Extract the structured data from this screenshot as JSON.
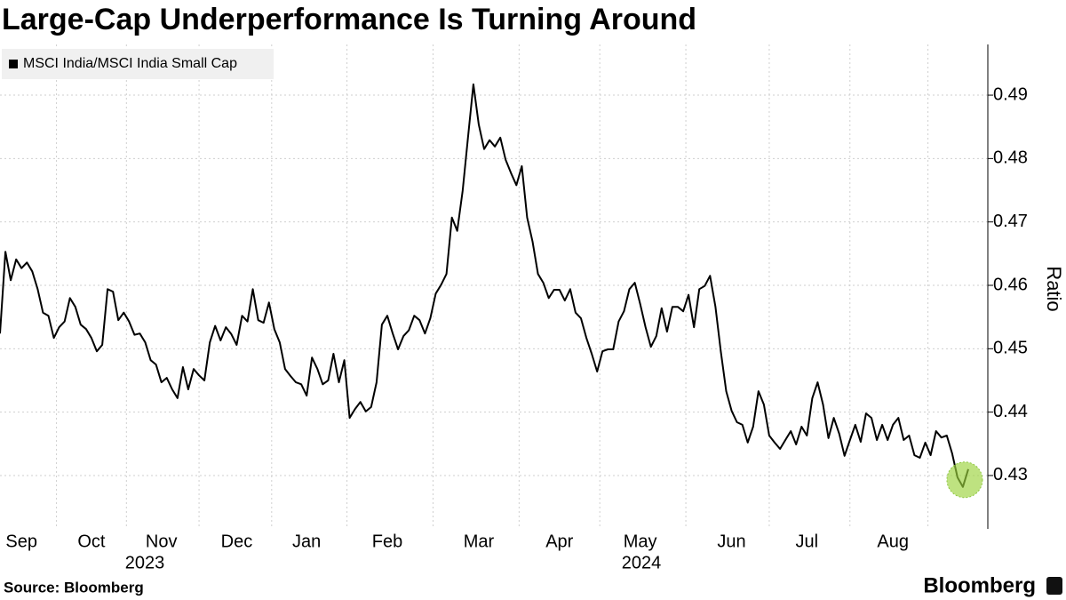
{
  "chart_data": {
    "type": "line",
    "title": "Large-Cap Underperformance Is Turning Around",
    "y_label": "Ratio",
    "source": "Source: Bloomberg",
    "brand": "Bloomberg",
    "year_labels": [
      "2023",
      "2024"
    ],
    "categories": [
      null,
      null,
      null,
      null,
      "Sep",
      null,
      null,
      null,
      null,
      null,
      null,
      null,
      null,
      null,
      null,
      null,
      null,
      "Oct",
      null,
      null,
      null,
      null,
      null,
      null,
      null,
      null,
      null,
      null,
      null,
      null,
      "Nov",
      null,
      null,
      null,
      null,
      null,
      null,
      null,
      null,
      null,
      null,
      null,
      null,
      null,
      "Dec",
      null,
      null,
      null,
      null,
      null,
      null,
      null,
      null,
      null,
      null,
      null,
      null,
      "Jan",
      null,
      null,
      null,
      null,
      null,
      null,
      null,
      null,
      null,
      null,
      null,
      null,
      null,
      null,
      "Feb",
      null,
      null,
      null,
      null,
      null,
      null,
      null,
      null,
      null,
      null,
      null,
      null,
      null,
      null,
      null,
      null,
      "Mar",
      null,
      null,
      null,
      null,
      null,
      null,
      null,
      null,
      null,
      null,
      null,
      null,
      null,
      null,
      "Apr",
      null,
      null,
      null,
      null,
      null,
      null,
      null,
      null,
      null,
      null,
      null,
      null,
      null,
      null,
      "May",
      null,
      null,
      null,
      null,
      null,
      null,
      null,
      null,
      null,
      null,
      null,
      null,
      null,
      null,
      null,
      null,
      "Jun",
      null,
      null,
      null,
      null,
      null,
      null,
      null,
      null,
      null,
      null,
      null,
      null,
      null,
      "Jul",
      null,
      null,
      null,
      null,
      null,
      null,
      null,
      null,
      null,
      null,
      null,
      null,
      null,
      null,
      null,
      "Aug",
      null,
      null,
      null,
      null,
      null,
      null,
      null,
      null,
      null,
      null,
      null,
      null,
      null,
      null
    ],
    "series": [
      {
        "name": "MSCI India/MSCI India Small Cap",
        "color": "#000000",
        "values": [
          0.4524,
          0.4653,
          0.4608,
          0.4641,
          0.4627,
          0.4636,
          0.4622,
          0.4594,
          0.4557,
          0.4552,
          0.4517,
          0.4534,
          0.4543,
          0.458,
          0.4566,
          0.4538,
          0.4531,
          0.4517,
          0.4496,
          0.4506,
          0.4594,
          0.459,
          0.4545,
          0.4557,
          0.4543,
          0.4522,
          0.4524,
          0.451,
          0.4482,
          0.4475,
          0.4447,
          0.4454,
          0.4436,
          0.4422,
          0.4471,
          0.4436,
          0.4468,
          0.4458,
          0.445,
          0.451,
          0.4536,
          0.4513,
          0.4534,
          0.4523,
          0.4506,
          0.4552,
          0.4543,
          0.4594,
          0.4545,
          0.4541,
          0.4573,
          0.4531,
          0.451,
          0.4468,
          0.4457,
          0.4447,
          0.4444,
          0.4426,
          0.4486,
          0.4468,
          0.4444,
          0.445,
          0.4492,
          0.4447,
          0.4482,
          0.4391,
          0.4405,
          0.4416,
          0.4401,
          0.4408,
          0.4447,
          0.4538,
          0.4552,
          0.4524,
          0.4499,
          0.452,
          0.4529,
          0.4552,
          0.4545,
          0.4524,
          0.4548,
          0.4587,
          0.4601,
          0.4618,
          0.4707,
          0.4686,
          0.4749,
          0.4833,
          0.4917,
          0.4854,
          0.4815,
          0.4829,
          0.4819,
          0.4833,
          0.4798,
          0.4777,
          0.4758,
          0.4788,
          0.4707,
          0.4669,
          0.4618,
          0.4604,
          0.458,
          0.4593,
          0.4593,
          0.4576,
          0.4594,
          0.4557,
          0.4548,
          0.4517,
          0.4492,
          0.4464,
          0.4496,
          0.4499,
          0.4499,
          0.4543,
          0.4559,
          0.4594,
          0.4604,
          0.4571,
          0.4534,
          0.4503,
          0.452,
          0.4564,
          0.4527,
          0.4566,
          0.4566,
          0.4559,
          0.4585,
          0.4534,
          0.4594,
          0.4599,
          0.4615,
          0.4566,
          0.4496,
          0.4433,
          0.4402,
          0.4384,
          0.438,
          0.4352,
          0.4377,
          0.4433,
          0.4412,
          0.4363,
          0.4352,
          0.4342,
          0.4356,
          0.437,
          0.4349,
          0.4377,
          0.4363,
          0.4422,
          0.4447,
          0.4412,
          0.4359,
          0.4391,
          0.4366,
          0.4331,
          0.4356,
          0.438,
          0.4353,
          0.4398,
          0.4391,
          0.4356,
          0.438,
          0.4356,
          0.438,
          0.4391,
          0.4356,
          0.4363,
          0.4332,
          0.4328,
          0.4352,
          0.4332,
          0.437,
          0.436,
          0.4363,
          0.4335,
          0.4297,
          0.4282,
          0.431
        ]
      }
    ],
    "ylim": [
      0.422,
      0.498
    ],
    "yticks": [
      0.43,
      0.44,
      0.45,
      0.46,
      0.47,
      0.48,
      0.49
    ],
    "grid": true,
    "legend": "top-left"
  }
}
